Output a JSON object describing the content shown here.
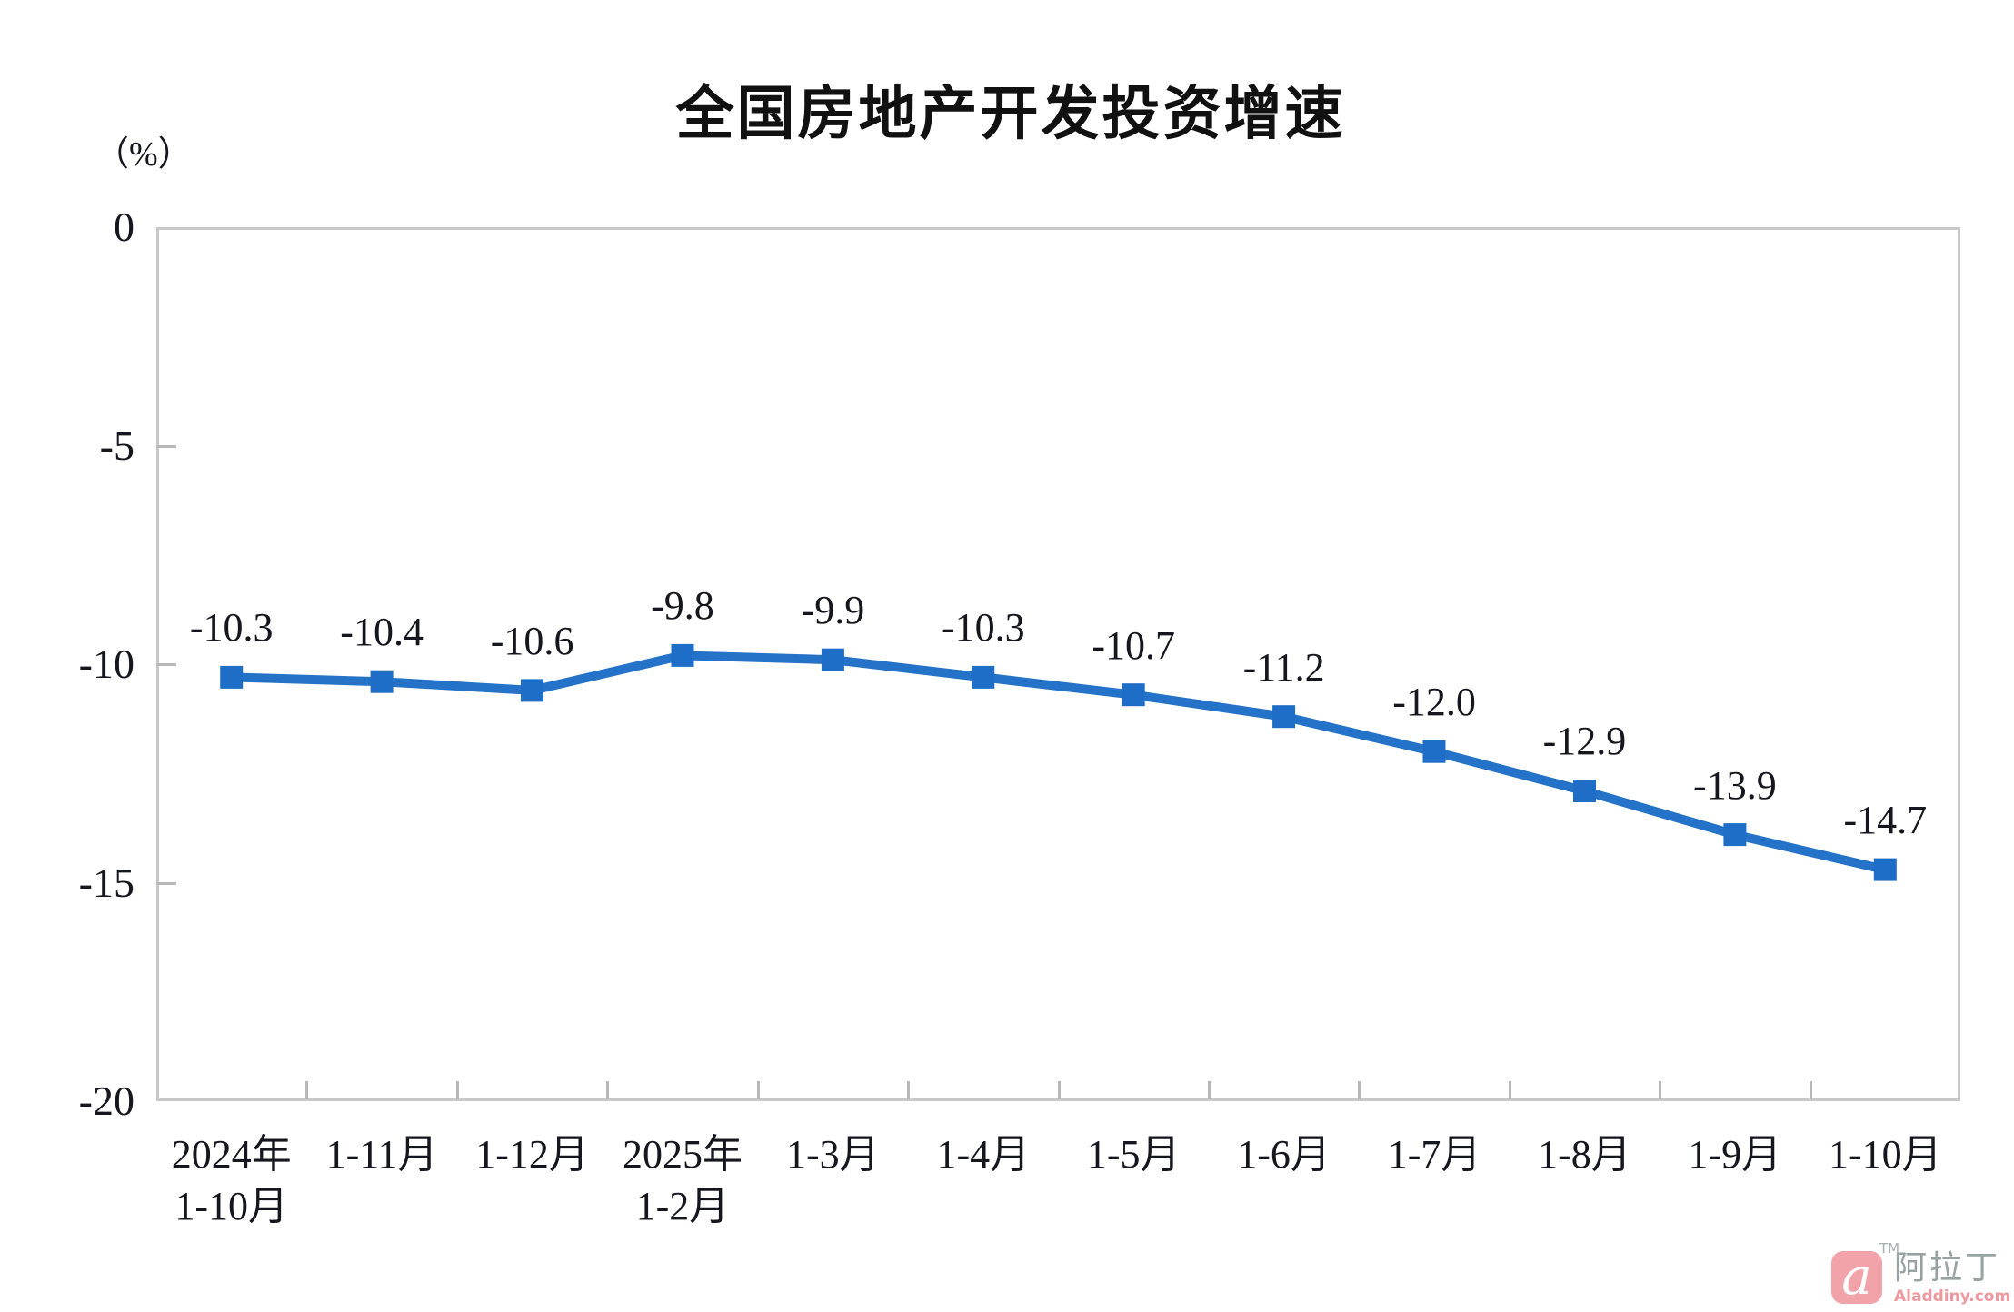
{
  "title": "全国房地产开发投资增速",
  "unit_label": "（%）",
  "colors": {
    "line": "#2573c8",
    "marker": "#1e6ec8",
    "plot_border": "#c8c8c8",
    "tick": "#b8b8b8",
    "text": "#16161e"
  },
  "chart_data": {
    "type": "line",
    "title": "全国房地产开发投资增速",
    "ylabel": "（%）",
    "categories": [
      [
        "2024年",
        "1-10月"
      ],
      [
        "1-11月"
      ],
      [
        "1-12月"
      ],
      [
        "2025年",
        "1-2月"
      ],
      [
        "1-3月"
      ],
      [
        "1-4月"
      ],
      [
        "1-5月"
      ],
      [
        "1-6月"
      ],
      [
        "1-7月"
      ],
      [
        "1-8月"
      ],
      [
        "1-9月"
      ],
      [
        "1-10月"
      ]
    ],
    "values": [
      -10.3,
      -10.4,
      -10.6,
      -9.8,
      -9.9,
      -10.3,
      -10.7,
      -11.2,
      -12.0,
      -12.9,
      -13.9,
      -14.7
    ],
    "data_labels": [
      "-10.3",
      "-10.4",
      "-10.6",
      "-9.8",
      "-9.9",
      "-10.3",
      "-10.7",
      "-11.2",
      "-12.0",
      "-12.9",
      "-13.9",
      "-14.7"
    ],
    "ylim": [
      0,
      -20
    ],
    "yticks": [
      0,
      -5,
      -10,
      -15,
      -20
    ],
    "grid": false,
    "legend": "none",
    "marker": "square"
  },
  "watermark": {
    "logo_letter": "a",
    "tm": "TM",
    "name": "阿拉丁",
    "site": "Aladdiny.com"
  }
}
